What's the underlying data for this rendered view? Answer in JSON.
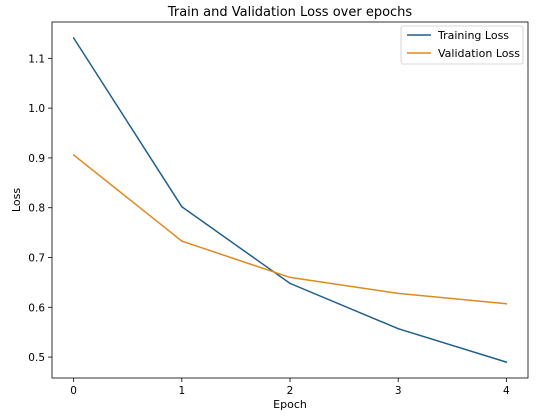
{
  "chart_data": {
    "type": "line",
    "title": "Train and Validation Loss over epochs",
    "xlabel": "Epoch",
    "ylabel": "Loss",
    "x": [
      0,
      1,
      2,
      3,
      4
    ],
    "xticks": [
      "0",
      "1",
      "2",
      "3",
      "4"
    ],
    "yticks": [
      "0.5",
      "0.6",
      "0.7",
      "0.8",
      "0.9",
      "1.0",
      "1.1"
    ],
    "xlim": [
      -0.2,
      4.2
    ],
    "ylim": [
      0.458,
      1.173
    ],
    "grid": false,
    "legend": "top-right",
    "series": [
      {
        "name": "Training Loss",
        "color": "#1f5f8b",
        "values": [
          1.141,
          0.802,
          0.648,
          0.557,
          0.49
        ]
      },
      {
        "name": "Validation Loss",
        "color": "#df8a1f",
        "values": [
          0.906,
          0.733,
          0.66,
          0.628,
          0.607
        ]
      }
    ]
  }
}
